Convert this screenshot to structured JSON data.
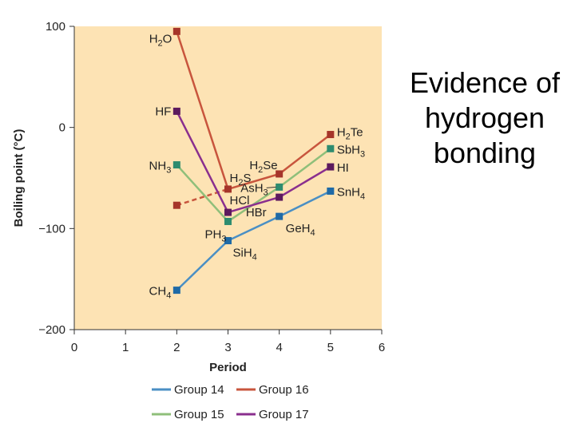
{
  "slide": {
    "title_lines": [
      "Evidence of",
      "hydrogen",
      "bonding"
    ]
  },
  "chart_data": {
    "type": "line",
    "xlabel": "Period",
    "ylabel": "Boiling point (°C)",
    "xlim": [
      0,
      6
    ],
    "ylim": [
      -200,
      100
    ],
    "xticks": [
      0,
      1,
      2,
      3,
      4,
      5,
      6
    ],
    "yticks": [
      100,
      0,
      -100,
      -200
    ],
    "grid": false,
    "legend_position": "bottom",
    "background_color": "#fde3b4",
    "series": [
      {
        "name": "Group 14",
        "color": "#4a8fc4",
        "marker_color": "#1f6aa6",
        "points": [
          {
            "x": 2,
            "y": -161,
            "label": "CH",
            "sub": "4",
            "after": ""
          },
          {
            "x": 3,
            "y": -112,
            "label": "SiH",
            "sub": "4",
            "after": ""
          },
          {
            "x": 4,
            "y": -88,
            "label": "GeH",
            "sub": "4",
            "after": ""
          },
          {
            "x": 5,
            "y": -63,
            "label": "SnH",
            "sub": "4",
            "after": ""
          }
        ]
      },
      {
        "name": "Group 15",
        "color": "#8fbf7a",
        "marker_color": "#2e8c6f",
        "points": [
          {
            "x": 2,
            "y": -37,
            "label": "NH",
            "sub": "3",
            "after": ""
          },
          {
            "x": 3,
            "y": -93,
            "label": "PH",
            "sub": "3",
            "after": ""
          },
          {
            "x": 4,
            "y": -59,
            "label": "AsH",
            "sub": "3",
            "after": ""
          },
          {
            "x": 5,
            "y": -21,
            "label": "SbH",
            "sub": "3",
            "after": ""
          }
        ]
      },
      {
        "name": "Group 16",
        "color": "#c8553d",
        "marker_color": "#a6352a",
        "points": [
          {
            "x": 2,
            "y": 95,
            "label": "H",
            "sub": "2",
            "after": "O"
          },
          {
            "x": 3,
            "y": -61,
            "label": "H",
            "sub": "2",
            "after": "S"
          },
          {
            "x": 4,
            "y": -46,
            "label": "H",
            "sub": "2",
            "after": "Se"
          },
          {
            "x": 5,
            "y": -7,
            "label": "H",
            "sub": "2",
            "after": "Te"
          }
        ],
        "dashed_segment": {
          "from": {
            "x": 2,
            "y": -77
          },
          "to": {
            "x": 3,
            "y": -61
          }
        }
      },
      {
        "name": "Group 17",
        "color": "#8a2f8e",
        "marker_color": "#5c1a5e",
        "points": [
          {
            "x": 2,
            "y": 16,
            "label": "HF",
            "sub": "",
            "after": ""
          },
          {
            "x": 3,
            "y": -84,
            "label": "HCl",
            "sub": "",
            "after": ""
          },
          {
            "x": 4,
            "y": -69,
            "label": "HBr",
            "sub": "",
            "after": ""
          },
          {
            "x": 5,
            "y": -39,
            "label": "HI",
            "sub": "",
            "after": ""
          }
        ]
      }
    ]
  }
}
